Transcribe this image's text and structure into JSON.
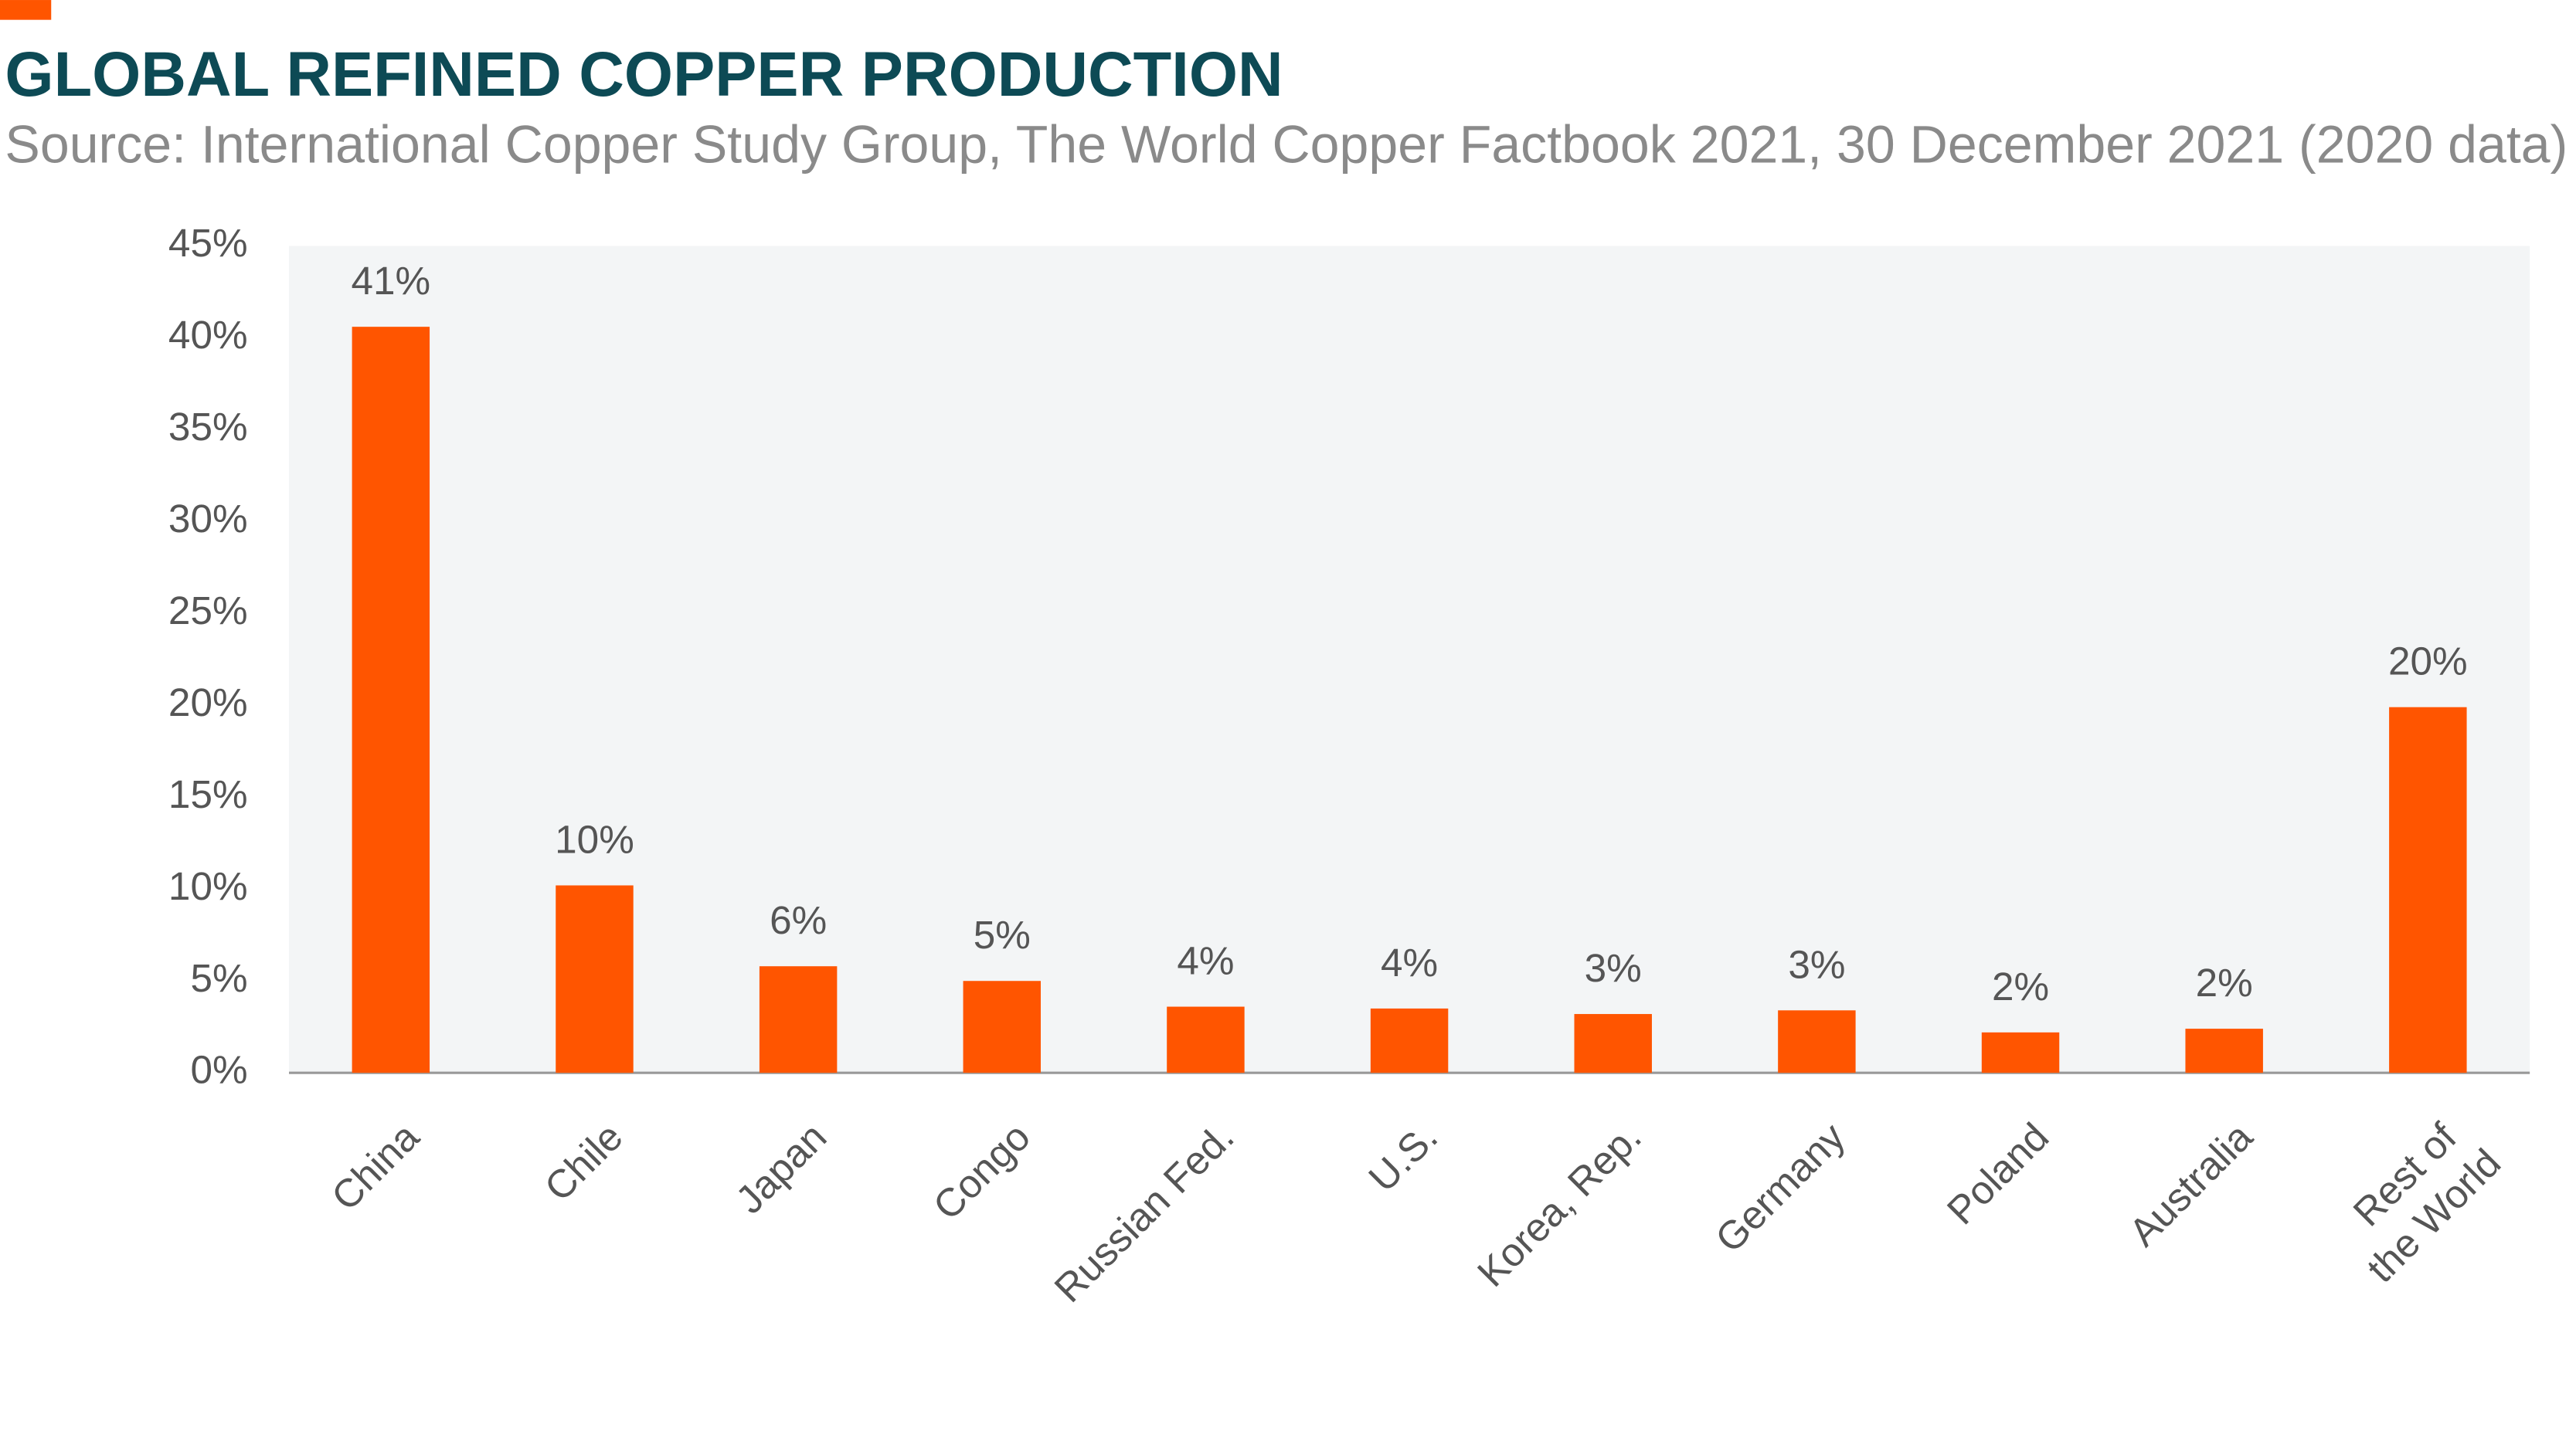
{
  "chart_data": {
    "type": "bar",
    "title": "GLOBAL REFINED COPPER PRODUCTION",
    "subtitle": "Source: International Copper Study Group, The World Copper Factbook 2021, 30 December 2021 (2020 data)",
    "categories": [
      "China",
      "Chile",
      "Japan",
      "Congo",
      "Russian Fed.",
      "U.S.",
      "Korea, Rep.",
      "Germany",
      "Poland",
      "Australia",
      "Rest of the World"
    ],
    "values": [
      40.6,
      10.2,
      5.8,
      5.0,
      3.6,
      3.5,
      3.2,
      3.4,
      2.2,
      2.4,
      19.9
    ],
    "value_labels": [
      "41%",
      "10%",
      "6%",
      "5%",
      "4%",
      "4%",
      "3%",
      "3%",
      "2%",
      "2%",
      "20%"
    ],
    "color": "#ff5500",
    "ylim": [
      0,
      45
    ],
    "yticks": [
      {
        "value": 0,
        "label": "0%"
      },
      {
        "value": 5,
        "label": "5%"
      },
      {
        "value": 10,
        "label": "10%"
      },
      {
        "value": 15,
        "label": "15%"
      },
      {
        "value": 20,
        "label": "20%"
      },
      {
        "value": 25,
        "label": "25%"
      },
      {
        "value": 30,
        "label": "30%"
      },
      {
        "value": 35,
        "label": "35%"
      },
      {
        "value": 40,
        "label": "40%"
      },
      {
        "value": 45,
        "label": "45%"
      }
    ],
    "grid": false
  }
}
